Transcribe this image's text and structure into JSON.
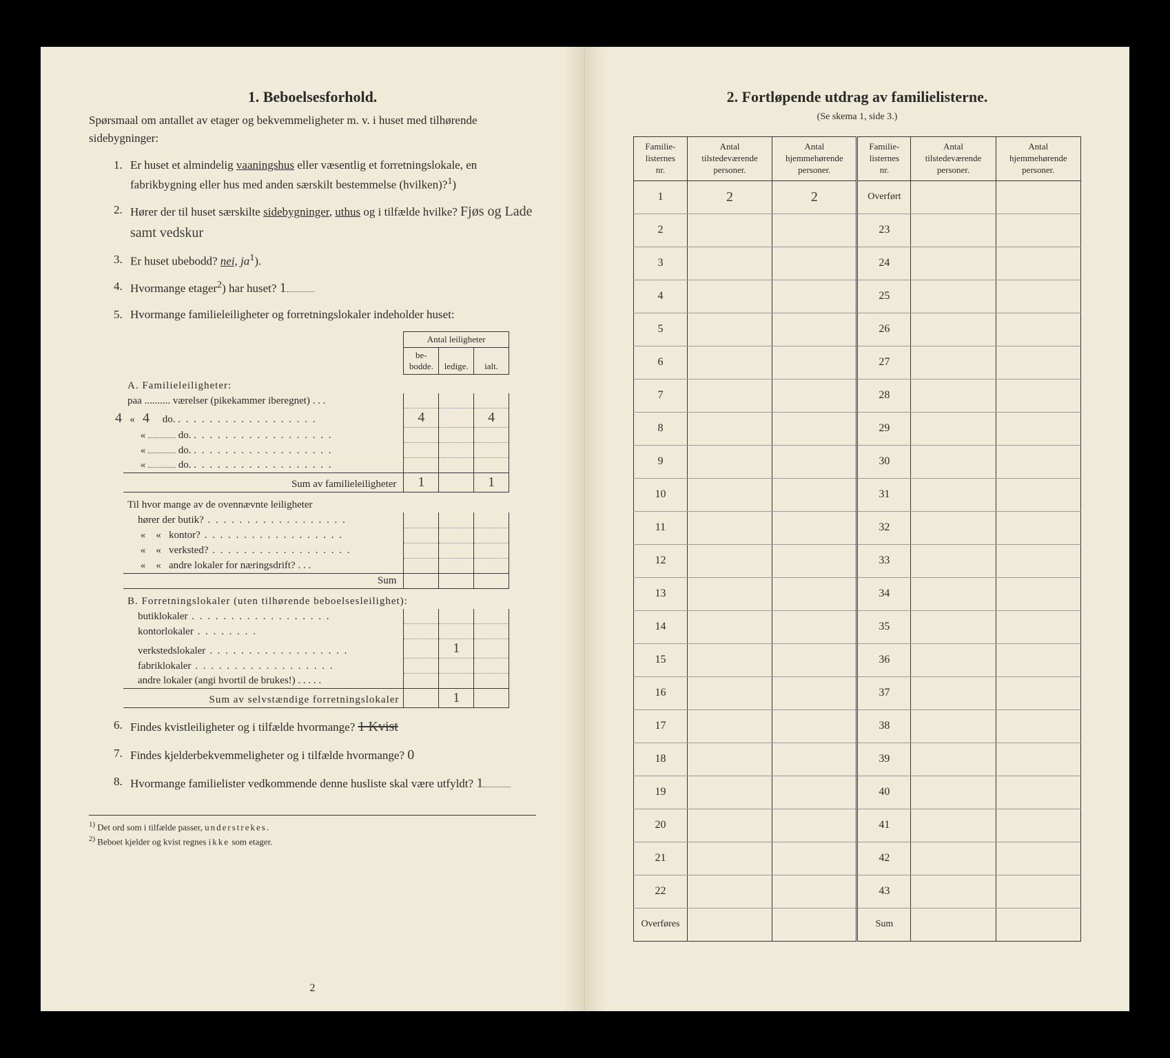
{
  "left": {
    "title": "1.   Beboelsesforhold.",
    "intro": "Spørsmaal om antallet av etager og bekvemmeligheter m. v. i huset med tilhørende sidebygninger:",
    "q1": "Er huset et almindelig vaaningshus eller væsentlig et forretningslokale, en fabrikbygning eller hus med anden særskilt bestemmelse (hvilken)?",
    "q1_sup": "1",
    "q2": "Hører der til huset særskilte sidebygninger, uthus og i tilfælde hvilke?",
    "q2_hw": "Fjøs og Lade samt vedskur",
    "q3_pre": "Er huset ubebodd?",
    "q3_nei": "nei,",
    "q3_ja": "ja",
    "q3_sup": "1",
    "q4_pre": "Hvormange etager",
    "q4_sup": "2",
    "q4_post": ") har huset?",
    "q4_hw": "1",
    "q5": "Hvormange familieleiligheter og forretningslokaler indeholder huset:",
    "tbl_head": "Antal leiligheter",
    "tbl_h1": "be-\nbodde.",
    "tbl_h2": "ledige.",
    "tbl_h3": "ialt.",
    "A_title": "A. Familieleiligheter:",
    "A_r1": "paa .......... værelser (pikekammer iberegnet) . . .",
    "A_hw_num": "4",
    "A_do": "do.",
    "A_val1": "4",
    "A_val3": "4",
    "A_sum": "Sum av familieleiligheter",
    "A_sum1": "1",
    "A_sum3": "1",
    "mid1": "Til hvor mange av de ovennævnte leiligheter",
    "mid_butik": "hører der butik?",
    "mid_kontor": "kontor?",
    "mid_verksted": "verksted?",
    "mid_andre": "andre lokaler for næringsdrift?",
    "mid_sum": "Sum",
    "B_title": "B. Forretningslokaler (uten tilhørende beboelsesleilighet):",
    "B_butik": "butiklokaler",
    "B_kontor": "kontorlokaler",
    "B_verksted": "verkstedslokaler",
    "B_verksted_val": "1",
    "B_fabrik": "fabriklokaler",
    "B_andre": "andre lokaler (angi hvortil de brukes!)",
    "B_sum": "Sum av selvstændige forretningslokaler",
    "B_sum_val": "1",
    "q6": "Findes kvistleiligheter og i tilfælde hvormange?",
    "q6_hw": "1 Kvist",
    "q7": "Findes kjelderbekvemmeligheter og i tilfælde hvormange?",
    "q7_hw": "0",
    "q8": "Hvormange familielister vedkommende denne husliste skal være utfyldt?",
    "q8_hw": "1",
    "fn1_num": "1)",
    "fn1": "Det ord som i tilfælde passer, understrekes.",
    "fn2_num": "2)",
    "fn2": "Beboet kjelder og kvist regnes ikke som etager.",
    "page_num": "2"
  },
  "right": {
    "title": "2.   Fortløpende utdrag av familielisterne.",
    "subtitle": "(Se skema 1, side 3.)",
    "h_nr": "Familie-\nlisternes\nnr.",
    "h_tilst": "Antal\ntilstedeværende\npersoner.",
    "h_hjem": "Antal\nhjemmehørende\npersoner.",
    "row1_v1": "2",
    "row1_v2": "2",
    "overfort": "Overført",
    "overfores": "Overføres",
    "sum": "Sum",
    "left_nums": [
      "1",
      "2",
      "3",
      "4",
      "5",
      "6",
      "7",
      "8",
      "9",
      "10",
      "11",
      "12",
      "13",
      "14",
      "15",
      "16",
      "17",
      "18",
      "19",
      "20",
      "21",
      "22"
    ],
    "right_nums": [
      "23",
      "24",
      "25",
      "26",
      "27",
      "28",
      "29",
      "30",
      "31",
      "32",
      "33",
      "34",
      "35",
      "36",
      "37",
      "38",
      "39",
      "40",
      "41",
      "42",
      "43"
    ]
  }
}
